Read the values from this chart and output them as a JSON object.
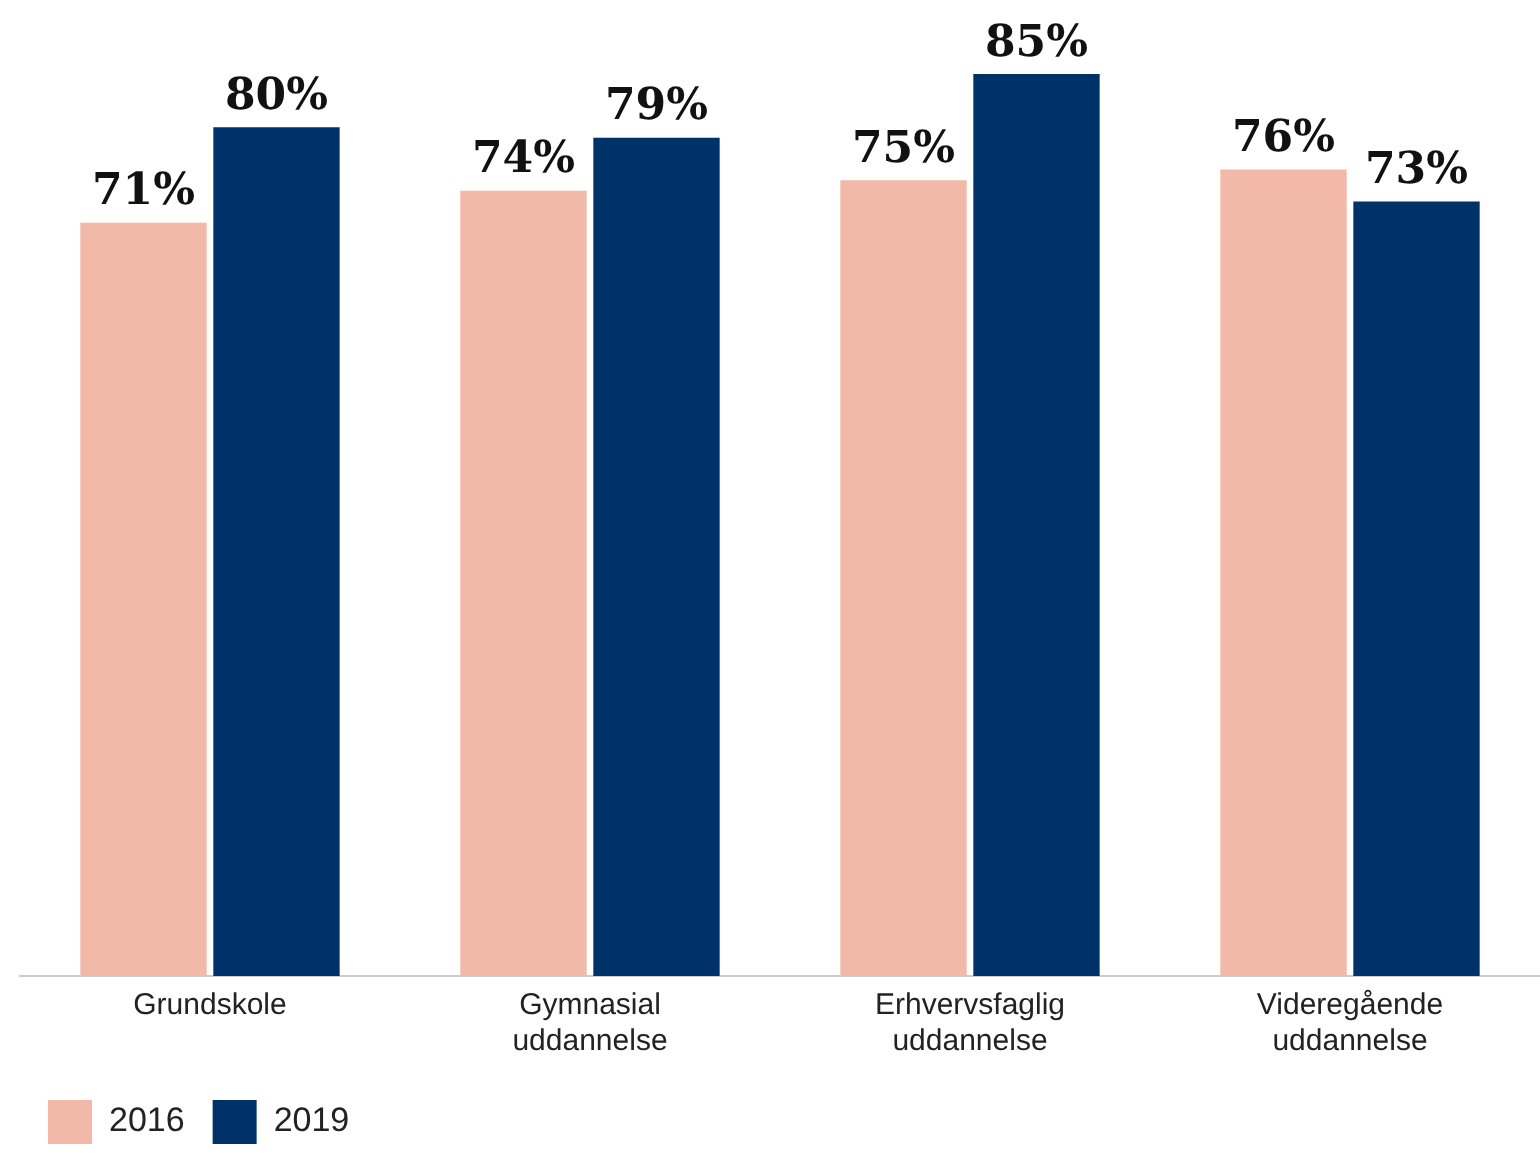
{
  "chart_data": {
    "type": "bar",
    "categories": [
      "Grundskole",
      "Gymnasial uddannelse",
      "Erhvervsfaglig uddannelse",
      "Videregående uddannelse"
    ],
    "series": [
      {
        "name": "2016",
        "color": "#f2b8a8",
        "values": [
          71,
          74,
          75,
          76
        ],
        "value_labels": [
          "71%",
          "74%",
          "75%",
          "76%"
        ]
      },
      {
        "name": "2019",
        "color": "#00326a",
        "values": [
          80,
          79,
          85,
          73
        ],
        "value_labels": [
          "80%",
          "79%",
          "85%",
          "73%"
        ]
      }
    ],
    "grid": false,
    "legend": "bottom left"
  }
}
